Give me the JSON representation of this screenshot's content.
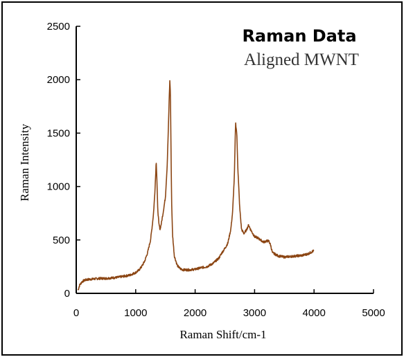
{
  "chart_data": {
    "type": "line",
    "title": "Raman Data",
    "subtitle": "Aligned MWNT",
    "xlabel": "Raman Shift/cm-1",
    "ylabel": "Raman Intensity",
    "xlim": [
      0,
      5000
    ],
    "ylim": [
      0,
      2500
    ],
    "xticks": [
      0,
      1000,
      2000,
      3000,
      4000,
      5000
    ],
    "yticks": [
      0,
      500,
      1000,
      1500,
      2000,
      2500
    ],
    "grid": false,
    "series": [
      {
        "color": "#8B4513",
        "x": [
          30,
          60,
          100,
          150,
          200,
          300,
          400,
          500,
          600,
          700,
          800,
          900,
          1000,
          1050,
          1100,
          1150,
          1200,
          1250,
          1280,
          1300,
          1320,
          1335,
          1345,
          1355,
          1370,
          1390,
          1410,
          1430,
          1460,
          1500,
          1530,
          1550,
          1565,
          1575,
          1585,
          1595,
          1605,
          1620,
          1650,
          1700,
          1750,
          1800,
          1900,
          2000,
          2100,
          2200,
          2300,
          2400,
          2450,
          2500,
          2550,
          2600,
          2630,
          2660,
          2680,
          2700,
          2720,
          2750,
          2780,
          2820,
          2860,
          2900,
          2930,
          2960,
          3000,
          3050,
          3100,
          3150,
          3200,
          3240,
          3270,
          3300,
          3400,
          3500,
          3600,
          3700,
          3800,
          3900,
          3950,
          4000
        ],
        "y": [
          30,
          80,
          110,
          125,
          130,
          135,
          140,
          140,
          145,
          150,
          160,
          170,
          195,
          215,
          250,
          300,
          380,
          500,
          640,
          750,
          920,
          1100,
          1240,
          1100,
          800,
          650,
          600,
          650,
          750,
          900,
          1200,
          1550,
          1850,
          2000,
          1850,
          1300,
          850,
          550,
          350,
          260,
          230,
          220,
          220,
          225,
          240,
          250,
          280,
          330,
          380,
          420,
          470,
          600,
          760,
          1100,
          1600,
          1500,
          1150,
          800,
          600,
          560,
          590,
          640,
          600,
          570,
          530,
          520,
          500,
          480,
          490,
          490,
          450,
          380,
          350,
          340,
          345,
          350,
          355,
          370,
          385,
          400
        ]
      }
    ]
  }
}
